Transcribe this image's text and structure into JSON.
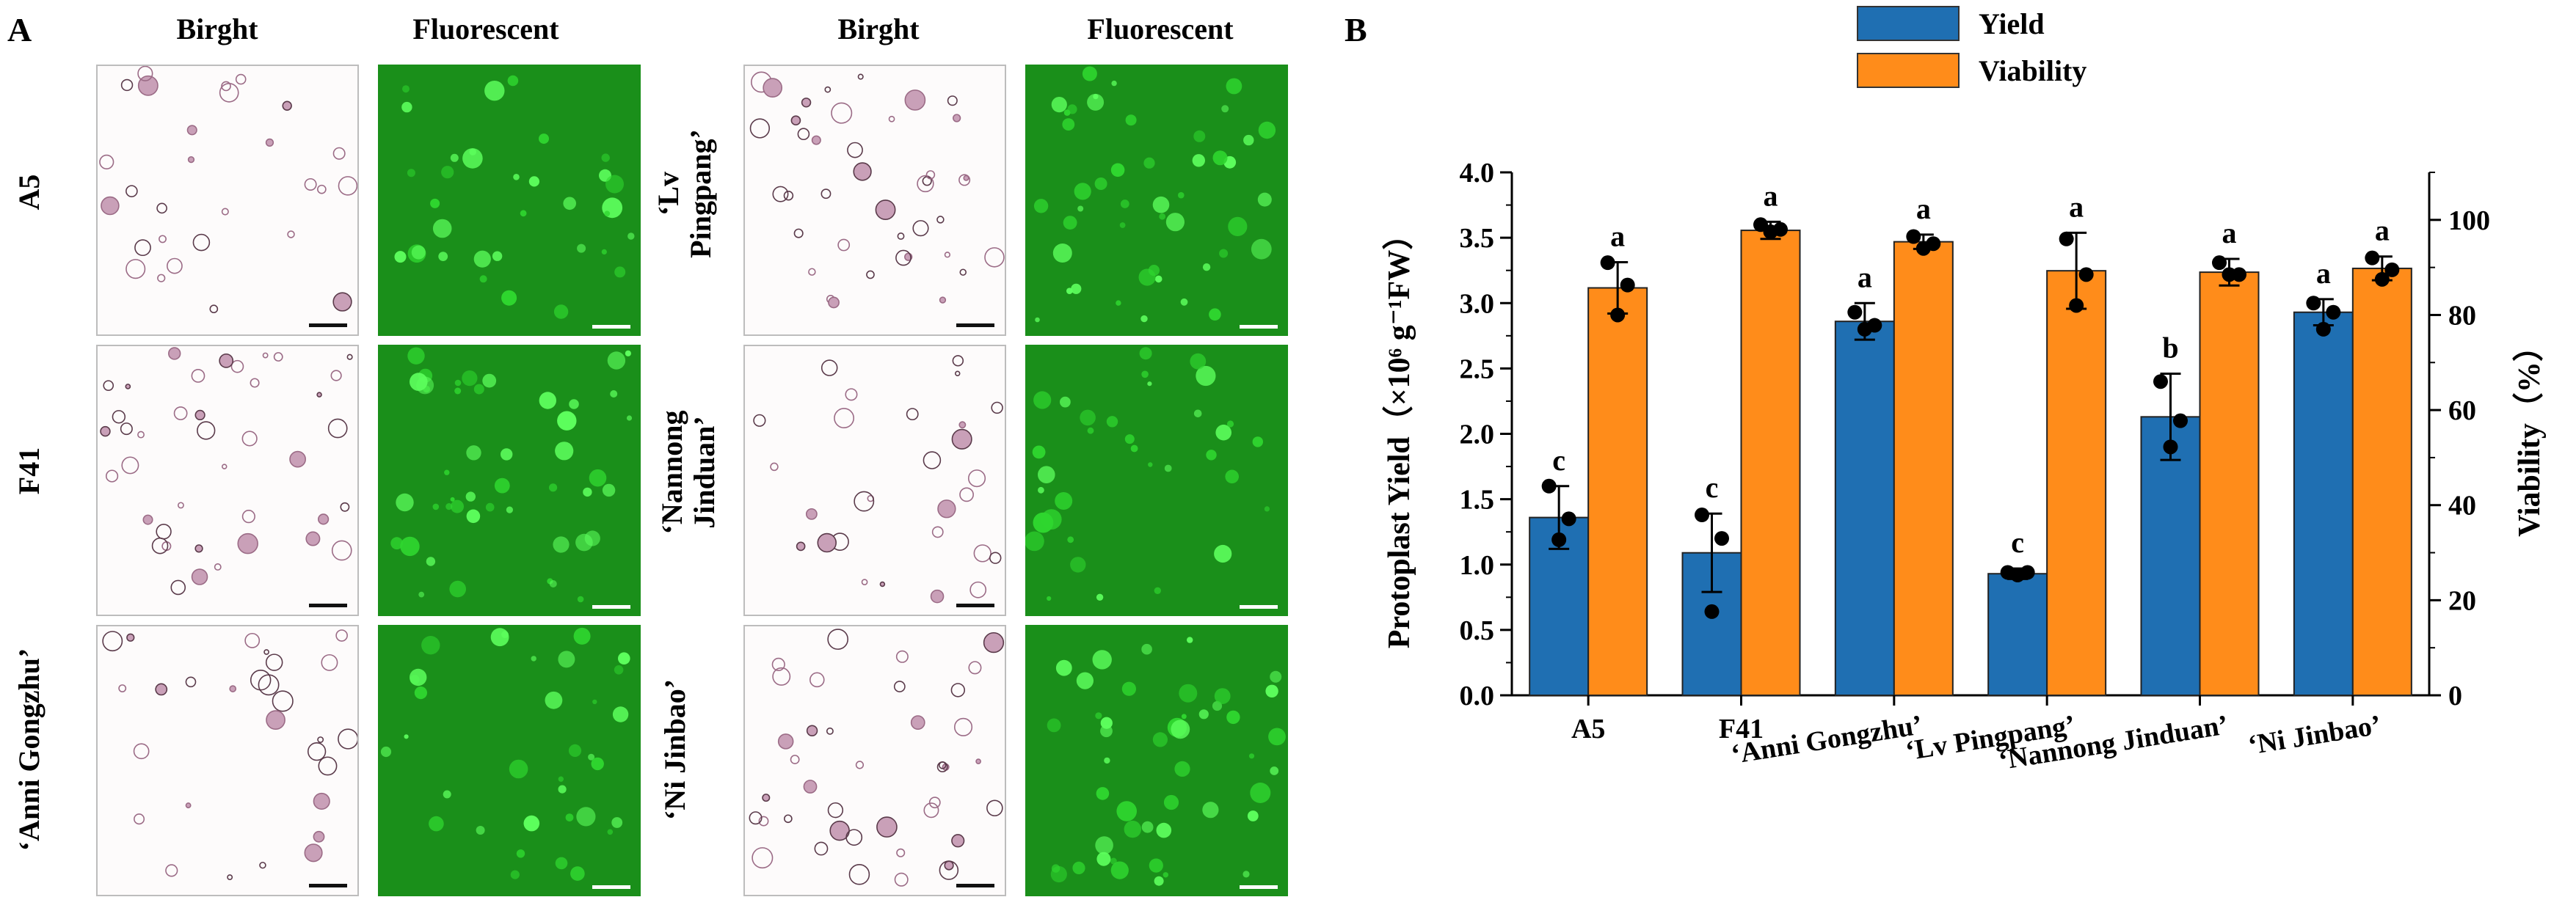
{
  "panel_a": {
    "letter": "A",
    "col_headers": [
      "Birght",
      "Fluorescent",
      "Birght",
      "Fluorescent"
    ],
    "rows_left": [
      "A5",
      "F41",
      "‘Anni Gongzhu’"
    ],
    "rows_right": [
      "‘Lv Pingpang’",
      "‘Nannong Jinduan’",
      "‘Ni Jinbao’"
    ]
  },
  "panel_b": {
    "letter": "B"
  },
  "colors": {
    "yield": "#1f6fb2",
    "viability": "#ff8c1a",
    "bright_bg": "#fdfbfb",
    "fluor_bg": "#1a8f1a"
  },
  "chart_data": {
    "type": "bar",
    "categories": [
      "A5",
      "F41",
      "‘Anni Gongzhu’",
      "‘Lv Pingpang’",
      "‘Nannong Jinduan’",
      "‘Ni Jinbao’"
    ],
    "series": [
      {
        "name": "Yield",
        "axis": "left",
        "values": [
          1.36,
          1.09,
          2.86,
          0.93,
          2.13,
          2.93
        ],
        "error": [
          0.24,
          0.3,
          0.14,
          0.04,
          0.33,
          0.1
        ],
        "points": [
          [
            1.6,
            1.35,
            1.19
          ],
          [
            1.38,
            1.2,
            0.64
          ],
          [
            2.93,
            2.83,
            2.8
          ],
          [
            0.94,
            0.94,
            0.92
          ],
          [
            2.4,
            2.1,
            1.9
          ],
          [
            3.0,
            2.93,
            2.8
          ]
        ],
        "letters": [
          "c",
          "c",
          "a",
          "c",
          "b",
          "a"
        ]
      },
      {
        "name": "Viability",
        "axis": "right",
        "values": [
          85.7,
          97.8,
          95.4,
          89.3,
          89.0,
          89.8
        ],
        "error": [
          5.4,
          1.8,
          1.5,
          8.0,
          2.8,
          2.5
        ],
        "points": [
          [
            91.0,
            86.3,
            80.0
          ],
          [
            99.0,
            98.0,
            97.5
          ],
          [
            96.5,
            95.0,
            94.0
          ],
          [
            96.0,
            88.5,
            82.0
          ],
          [
            91.0,
            88.5,
            88.5
          ],
          [
            92.0,
            89.5,
            87.5
          ]
        ],
        "letters": [
          "a",
          "a",
          "a",
          "a",
          "a",
          "a"
        ]
      }
    ],
    "ylabel_left": "Protoplast Yield（×10⁶ g⁻¹FW）",
    "ylabel_right": "Viability（%）",
    "ylim_left": [
      0,
      4
    ],
    "ylim_right": [
      0,
      110
    ],
    "yticks_left": [
      "0.0",
      "0.5",
      "1.0",
      "1.5",
      "2.0",
      "2.5",
      "3.0",
      "3.5",
      "4.0"
    ],
    "yticks_right": [
      "0",
      "20",
      "40",
      "60",
      "80",
      "100"
    ],
    "legend": [
      "Yield",
      "Viability"
    ],
    "legend_placement": "top-center",
    "grid": false
  }
}
